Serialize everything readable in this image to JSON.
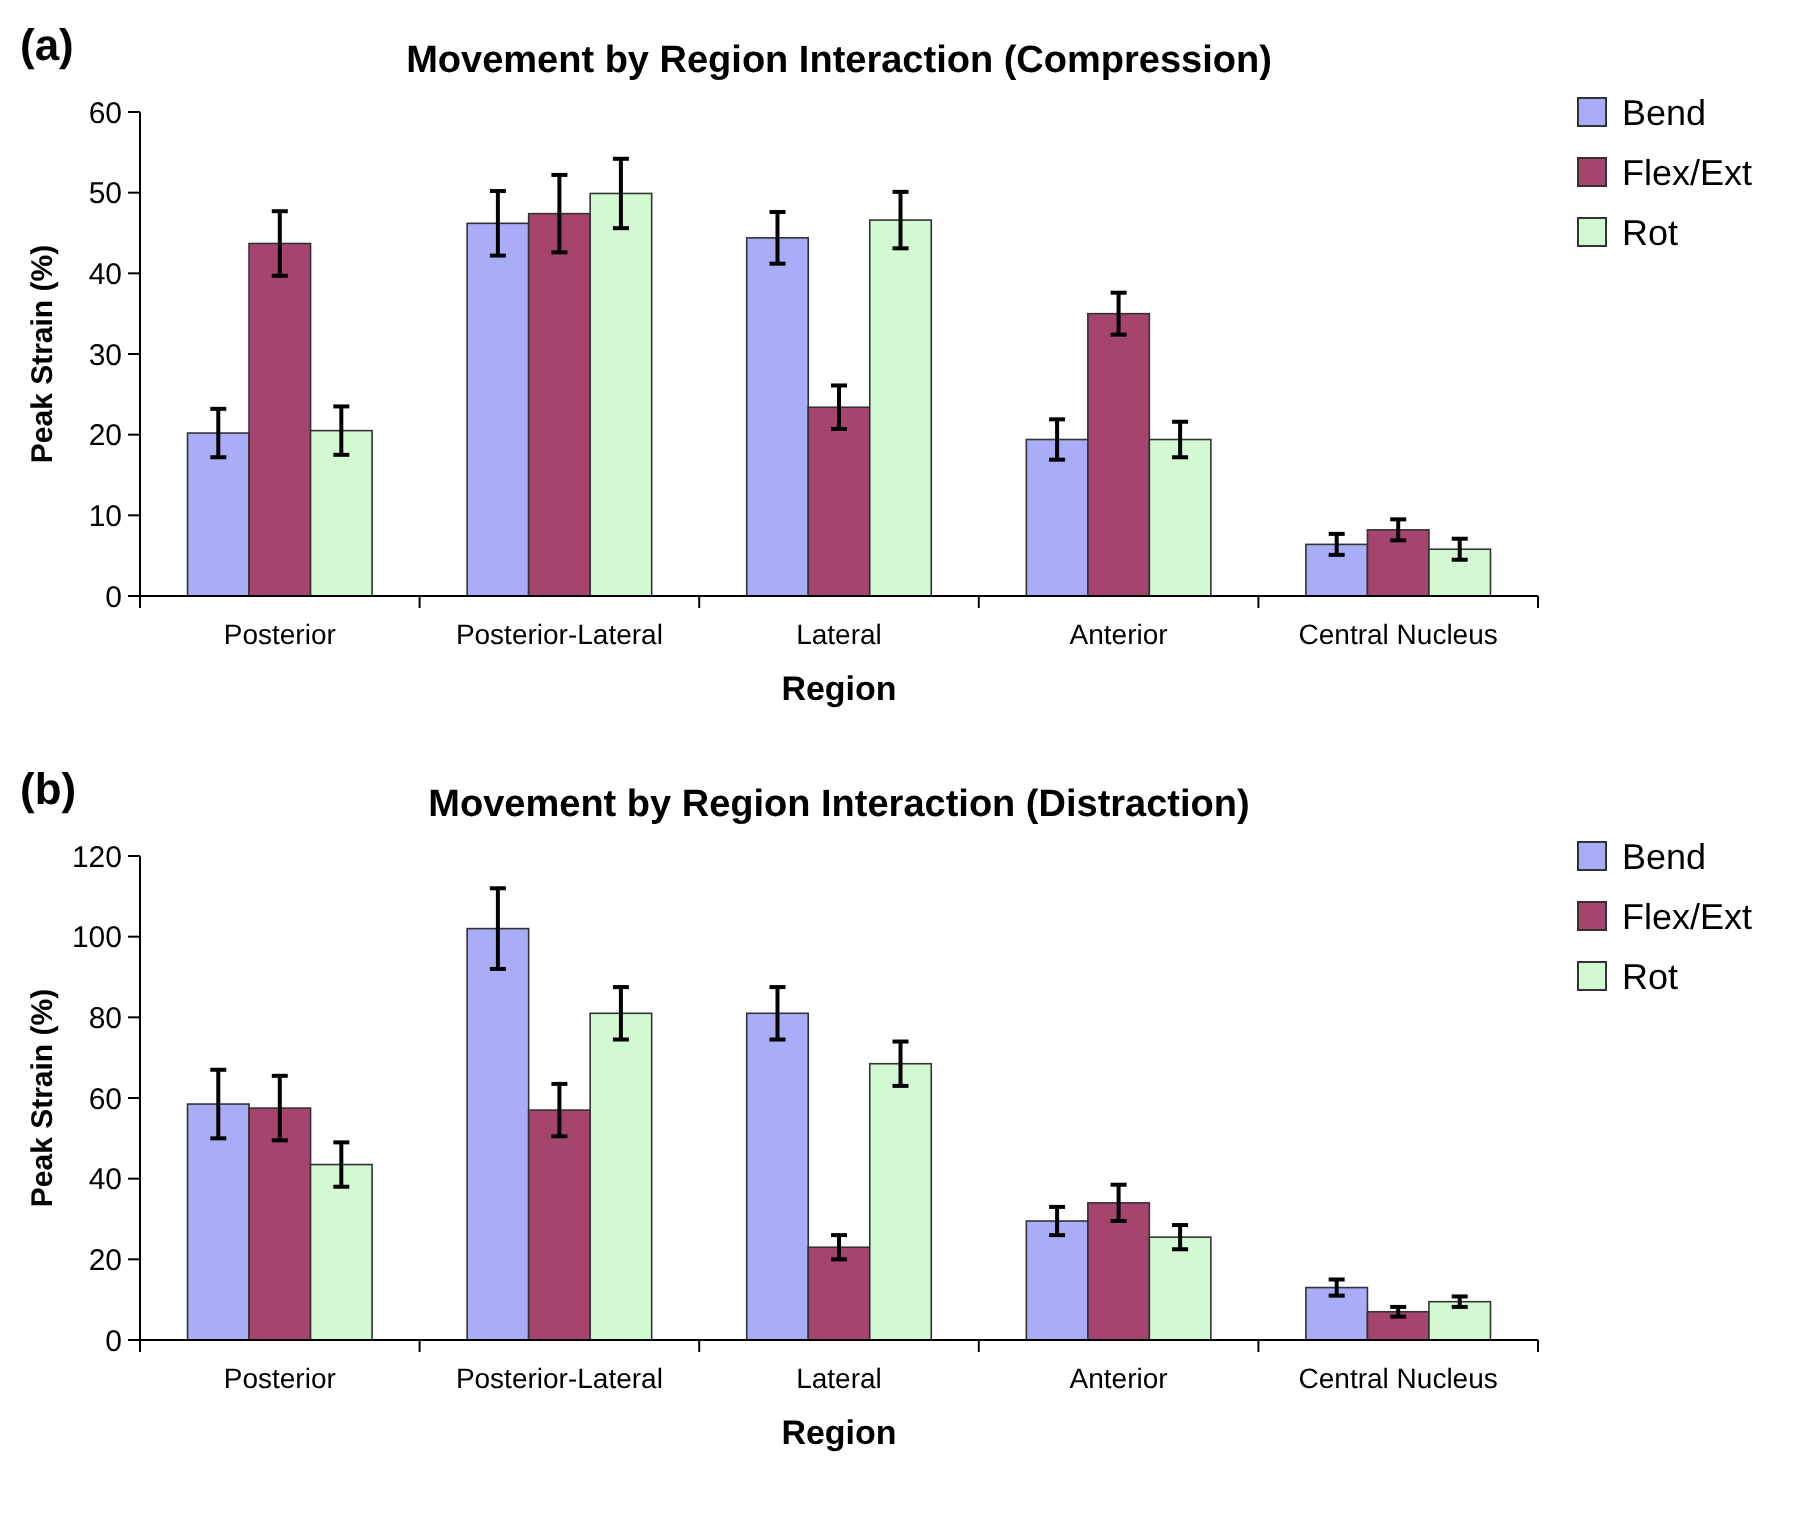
{
  "chart_data": [
    {
      "type": "bar",
      "title": "Movement by Region Interaction (Compression)",
      "xlabel": "Region",
      "ylabel": "Peak Strain (%)",
      "annotations": [
        "(a)"
      ],
      "categories": [
        "Posterior",
        "Posterior-Lateral",
        "Lateral",
        "Anterior",
        "Central Nucleus"
      ],
      "ylim": [
        0,
        60
      ],
      "yticks": [
        0,
        10,
        20,
        30,
        40,
        50,
        60
      ],
      "grid": false,
      "legend": "right",
      "series": [
        {
          "name": "Bend",
          "color": "#a9acf7",
          "values": [
            20.2,
            46.2,
            44.4,
            19.4,
            6.4
          ],
          "errors": [
            3,
            4,
            3.2,
            2.5,
            1.3
          ]
        },
        {
          "name": "Flex/Ext",
          "color": "#a5456e",
          "values": [
            43.7,
            47.4,
            23.4,
            35,
            8.2
          ],
          "errors": [
            4,
            4.8,
            2.7,
            2.6,
            1.3
          ]
        },
        {
          "name": "Rot",
          "color": "#d3f9d3",
          "values": [
            20.5,
            49.9,
            46.6,
            19.4,
            5.8
          ],
          "errors": [
            3,
            4.3,
            3.5,
            2.2,
            1.3
          ]
        }
      ]
    },
    {
      "type": "bar",
      "title": "Movement by Region Interaction (Distraction)",
      "xlabel": "Region",
      "ylabel": "Peak Strain (%)",
      "annotations": [
        "(b)"
      ],
      "categories": [
        "Posterior",
        "Posterior-Lateral",
        "Lateral",
        "Anterior",
        "Central Nucleus"
      ],
      "ylim": [
        0,
        120
      ],
      "yticks": [
        0,
        20,
        40,
        60,
        80,
        100,
        120
      ],
      "grid": false,
      "legend": "right",
      "series": [
        {
          "name": "Bend",
          "color": "#a9acf7",
          "values": [
            58.5,
            102,
            81,
            29.5,
            13
          ],
          "errors": [
            8.5,
            10,
            6.5,
            3.5,
            2
          ]
        },
        {
          "name": "Flex/Ext",
          "color": "#a5456e",
          "values": [
            57.5,
            57,
            23,
            34,
            7
          ],
          "errors": [
            8,
            6.5,
            3,
            4.5,
            1.2
          ]
        },
        {
          "name": "Rot",
          "color": "#d3f9d3",
          "values": [
            43.5,
            81,
            68.5,
            25.5,
            9.5
          ],
          "errors": [
            5.5,
            6.5,
            5.5,
            3,
            1.3
          ]
        }
      ]
    }
  ]
}
